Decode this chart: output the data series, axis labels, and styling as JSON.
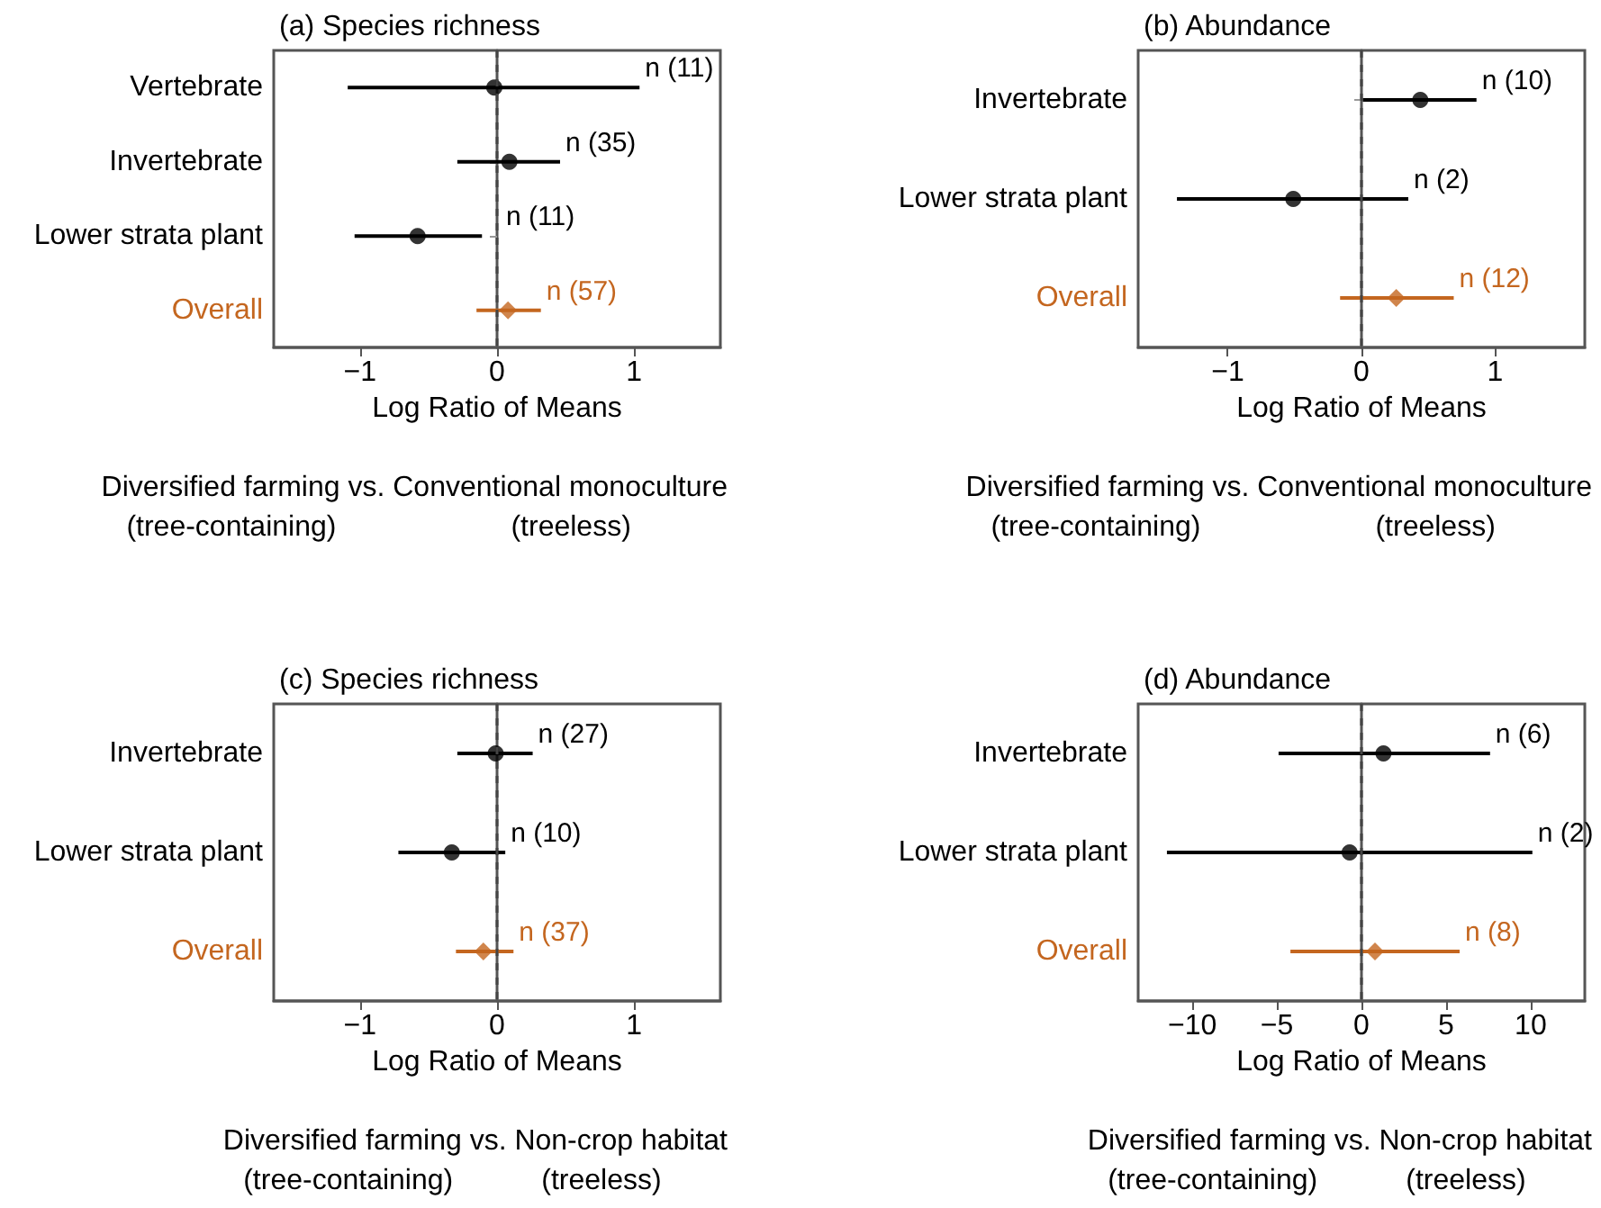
{
  "chart_data": [
    {
      "type": "scatter",
      "orientation": "horizontal",
      "title": "(a) Species richness",
      "xlabel": "Log Ratio of Means",
      "categories": [
        "Vertebrate",
        "Invertebrate",
        "Lower strata plant",
        "Overall"
      ],
      "series": [
        {
          "color": "#000000",
          "marker": "circle",
          "values": [
            -0.02,
            0.09,
            -0.58,
            null
          ],
          "errors": [
            [
              -1.09,
              1.04
            ],
            [
              -0.29,
              0.46
            ],
            [
              -1.04,
              -0.11
            ],
            null
          ]
        },
        {
          "color": "#c4661f",
          "marker": "diamond",
          "values": [
            null,
            null,
            null,
            0.08
          ],
          "errors": [
            null,
            null,
            null,
            [
              -0.15,
              0.32
            ]
          ]
        }
      ],
      "xlim": [
        -1.63,
        1.63
      ],
      "xticks": [
        -1,
        0,
        1
      ],
      "ref_lines": [
        {
          "axis": "x",
          "value": 0,
          "color": "#444444",
          "line_style": "dashed"
        }
      ],
      "annotations": [
        "Diversified farming vs. Conventional monoculture",
        "(tree-containing)",
        "(treeless)",
        {
          "text": "n (11)",
          "x": 1.04,
          "y": "Vertebrate"
        },
        {
          "text": "n (35)",
          "x": 0.46,
          "y": "Invertebrate"
        },
        {
          "text": "n (11)",
          "x": -0.11,
          "y": "Lower strata plant"
        },
        {
          "text": "n (57)",
          "x": 0.32,
          "y": "Overall"
        }
      ],
      "grid": false
    },
    {
      "type": "scatter",
      "orientation": "horizontal",
      "title": "(b) Abundance",
      "xlabel": "Log Ratio of Means",
      "categories": [
        "Invertebrate",
        "Lower strata plant",
        "Overall"
      ],
      "series": [
        {
          "color": "#000000",
          "marker": "circle",
          "values": [
            0.44,
            -0.51,
            null
          ],
          "errors": [
            [
              0.01,
              0.86
            ],
            [
              -1.38,
              0.35
            ],
            null
          ]
        },
        {
          "color": "#c4661f",
          "marker": "diamond",
          "values": [
            null,
            null,
            0.26
          ],
          "errors": [
            null,
            null,
            [
              -0.16,
              0.69
            ]
          ]
        }
      ],
      "xlim": [
        -1.67,
        1.67
      ],
      "xticks": [
        -1,
        0,
        1
      ],
      "ref_lines": [
        {
          "axis": "x",
          "value": 0,
          "color": "#444444",
          "line_style": "dashed"
        }
      ],
      "annotations": [
        "Diversified farming vs. Conventional monoculture",
        "(tree-containing)",
        "(treeless)",
        {
          "text": "n (10)",
          "x": 0.86,
          "y": "Invertebrate"
        },
        {
          "text": "n (2)",
          "x": 0.35,
          "y": "Lower strata plant"
        },
        {
          "text": "n (12)",
          "x": 0.69,
          "y": "Overall"
        }
      ],
      "grid": false
    },
    {
      "type": "scatter",
      "orientation": "horizontal",
      "title": "(c) Species richness",
      "xlabel": "Log Ratio of Means",
      "categories": [
        "Invertebrate",
        "Lower strata plant",
        "Overall"
      ],
      "series": [
        {
          "color": "#000000",
          "marker": "circle",
          "values": [
            -0.01,
            -0.33,
            null
          ],
          "errors": [
            [
              -0.29,
              0.26
            ],
            [
              -0.72,
              0.06
            ],
            null
          ]
        },
        {
          "color": "#c4661f",
          "marker": "diamond",
          "values": [
            null,
            null,
            -0.1
          ],
          "errors": [
            null,
            null,
            [
              -0.3,
              0.12
            ]
          ]
        }
      ],
      "xlim": [
        -1.63,
        1.63
      ],
      "xticks": [
        -1,
        0,
        1
      ],
      "ref_lines": [
        {
          "axis": "x",
          "value": 0,
          "color": "#444444",
          "line_style": "dashed"
        }
      ],
      "annotations": [
        "Diversified farming vs. Non-crop habitat",
        "(tree-containing)",
        "(treeless)",
        {
          "text": "n (27)",
          "x": 0.26,
          "y": "Invertebrate"
        },
        {
          "text": "n (10)",
          "x": 0.06,
          "y": "Lower strata plant"
        },
        {
          "text": "n (37)",
          "x": 0.12,
          "y": "Overall"
        }
      ],
      "grid": false
    },
    {
      "type": "scatter",
      "orientation": "horizontal",
      "title": "(d) Abundance",
      "xlabel": "Log Ratio of Means",
      "categories": [
        "Invertebrate",
        "Lower strata plant",
        "Overall"
      ],
      "series": [
        {
          "color": "#000000",
          "marker": "circle",
          "values": [
            1.3,
            -0.7,
            null
          ],
          "errors": [
            [
              -4.9,
              7.6
            ],
            [
              -11.5,
              10.1
            ],
            null
          ]
        },
        {
          "color": "#c4661f",
          "marker": "diamond",
          "values": [
            null,
            null,
            0.8
          ],
          "errors": [
            null,
            null,
            [
              -4.2,
              5.8
            ]
          ]
        }
      ],
      "xlim": [
        -13.2,
        13.2
      ],
      "xticks": [
        -10,
        -5,
        0,
        5,
        10
      ],
      "ref_lines": [
        {
          "axis": "x",
          "value": 0,
          "color": "#444444",
          "line_style": "dashed"
        }
      ],
      "annotations": [
        "Diversified farming vs. Non-crop habitat",
        "(tree-containing)",
        "(treeless)",
        {
          "text": "n (6)",
          "x": 7.6,
          "y": "Invertebrate"
        },
        {
          "text": "n (2)",
          "x": 10.1,
          "y": "Lower strata plant"
        },
        {
          "text": "n (8)",
          "x": 5.8,
          "y": "Overall"
        }
      ],
      "grid": false
    }
  ]
}
